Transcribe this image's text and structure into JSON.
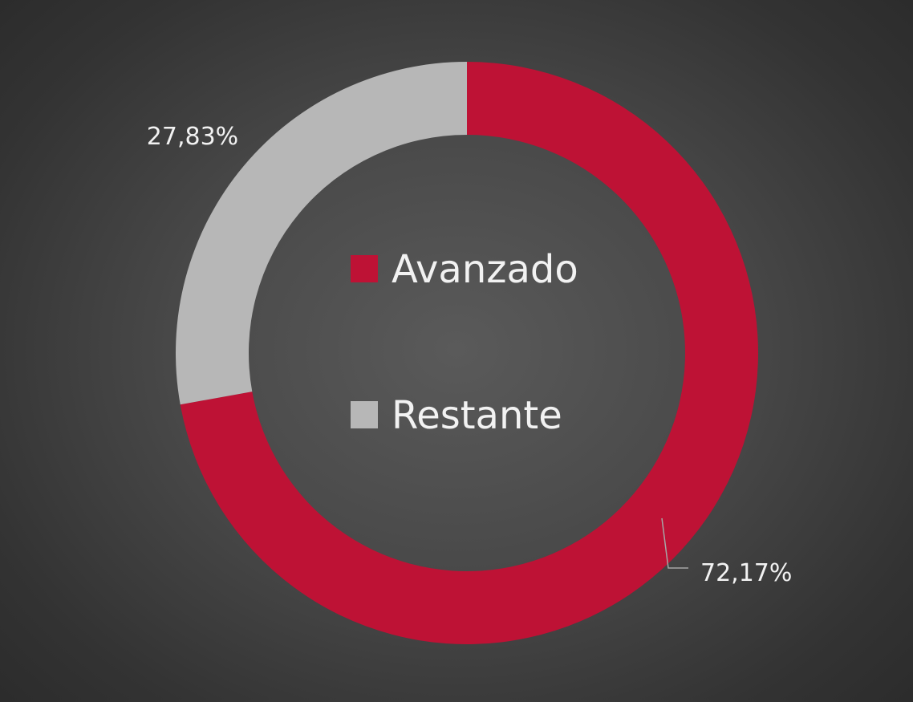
{
  "chart_data": {
    "type": "pie",
    "variant": "donut",
    "title": "",
    "categories": [
      "Avanzado",
      "Restante"
    ],
    "values": [
      72.17,
      27.83
    ],
    "data_labels": [
      "72,17%",
      "27,83%"
    ],
    "colors": [
      "#BE1235",
      "#B7B7B7"
    ],
    "legend": {
      "placement": "center",
      "entries": [
        "Avanzado",
        "Restante"
      ]
    },
    "label_color": "#F2F2F2",
    "legend_text_color": "#F2F2F2",
    "leader_line_color": "#A6A6A6"
  }
}
